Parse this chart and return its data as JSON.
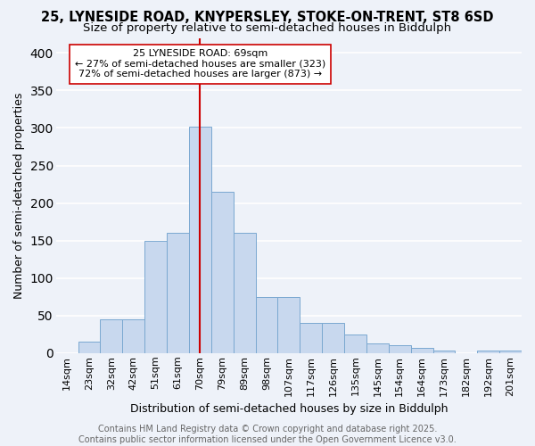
{
  "title1": "25, LYNESIDE ROAD, KNYPERSLEY, STOKE-ON-TRENT, ST8 6SD",
  "title2": "Size of property relative to semi-detached houses in Biddulph",
  "xlabel": "Distribution of semi-detached houses by size in Biddulph",
  "ylabel": "Number of semi-detached properties",
  "categories": [
    "14sqm",
    "23sqm",
    "32sqm",
    "42sqm",
    "51sqm",
    "61sqm",
    "70sqm",
    "79sqm",
    "89sqm",
    "98sqm",
    "107sqm",
    "117sqm",
    "126sqm",
    "135sqm",
    "145sqm",
    "154sqm",
    "164sqm",
    "173sqm",
    "182sqm",
    "192sqm",
    "201sqm"
  ],
  "values": [
    0,
    15,
    45,
    45,
    150,
    160,
    302,
    215,
    160,
    75,
    75,
    40,
    40,
    25,
    13,
    10,
    7,
    4,
    0,
    4,
    3
  ],
  "bar_color": "#c8d8ee",
  "bar_edge_color": "#7aa8d0",
  "vline_x_index": 6,
  "vline_color": "#cc0000",
  "annotation_line1": "25 LYNESIDE ROAD: 69sqm",
  "annotation_line2": "← 27% of semi-detached houses are smaller (323)",
  "annotation_line3": "72% of semi-detached houses are larger (873) →",
  "annotation_box_color": "#ffffff",
  "annotation_box_edge": "#cc0000",
  "background_color": "#eef2f9",
  "grid_color": "#ffffff",
  "footer": "Contains HM Land Registry data © Crown copyright and database right 2025.\nContains public sector information licensed under the Open Government Licence v3.0.",
  "ylim": [
    0,
    420
  ],
  "yticks": [
    0,
    50,
    100,
    150,
    200,
    250,
    300,
    350,
    400
  ],
  "title_fontsize": 10.5,
  "subtitle_fontsize": 9.5,
  "axis_label_fontsize": 9,
  "tick_fontsize": 8,
  "annotation_fontsize": 8
}
